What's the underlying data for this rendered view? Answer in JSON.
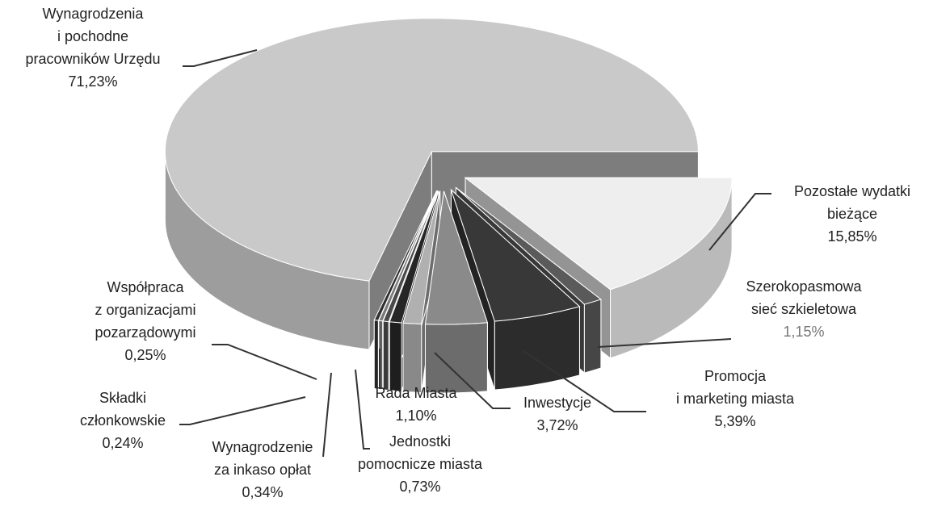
{
  "chart_data": {
    "type": "pie3d",
    "categories": [
      [
        "Pozostałe wydatki",
        "bieżące"
      ],
      [
        "Szerokopasmowa",
        "sieć szkieletowa"
      ],
      [
        "Promocja",
        "i marketing miasta"
      ],
      [
        "Inwestycje"
      ],
      [
        "Rada Miasta"
      ],
      [
        "Jednostki",
        "pomocnicze miasta"
      ],
      [
        "Wynagrodzenie",
        "za inkaso opłat"
      ],
      [
        "Składki",
        "członkowskie"
      ],
      [
        "Współpraca",
        "z organizacjami",
        "pozarządowymi"
      ],
      [
        "Wynagrodzenia",
        "i pochodne",
        "pracowników Urzędu"
      ]
    ],
    "values": [
      15.85,
      1.15,
      5.39,
      3.72,
      1.1,
      0.73,
      0.34,
      0.24,
      0.25,
      71.23
    ],
    "value_labels": [
      "15,85%",
      "1,15%",
      "5,39%",
      "3,72%",
      "1,10%",
      "0,73%",
      "0,34%",
      "0,24%",
      "0,25%",
      "71,23%"
    ],
    "colors": [
      "#eeeeee",
      "#5a5a5a",
      "#383838",
      "#8a8a8a",
      "#b0b0b0",
      "#262626",
      "#4a4a4a",
      "#7a7a7a",
      "#303030",
      "#c9c9c9"
    ]
  }
}
